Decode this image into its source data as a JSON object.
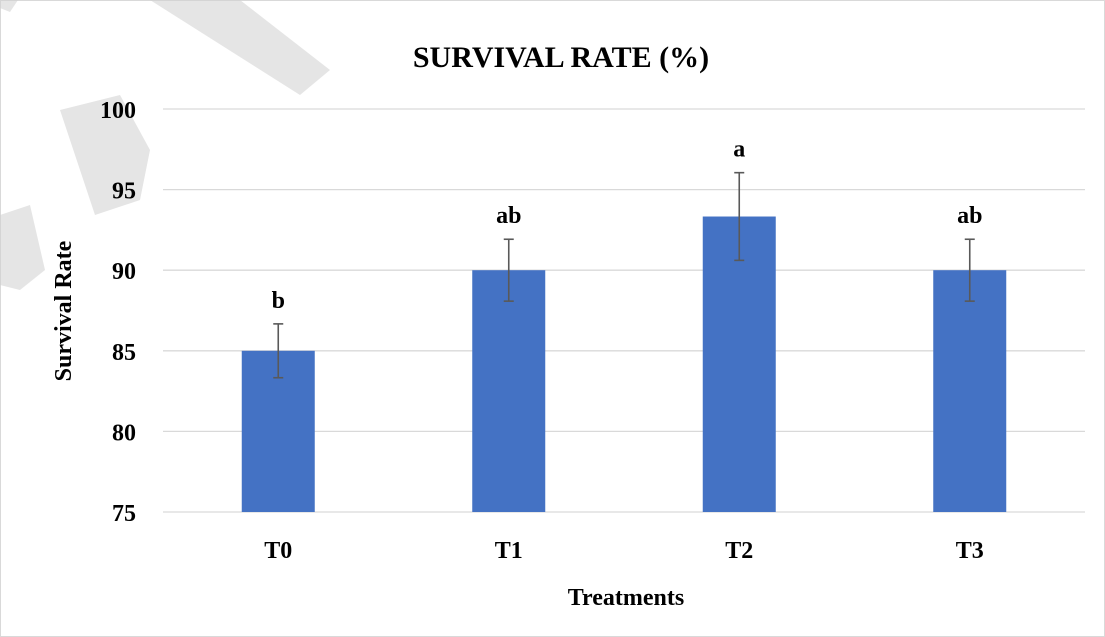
{
  "chart_data": {
    "type": "bar",
    "title": "SURVIVAL RATE (%)",
    "xlabel": "Treatments",
    "ylabel": "Survival Rate",
    "categories": [
      "T0",
      "T1",
      "T2",
      "T3"
    ],
    "values": [
      85,
      90,
      93.33,
      90
    ],
    "errors": [
      1.67,
      1.92,
      2.72,
      1.92
    ],
    "significance_labels": [
      "b",
      "ab",
      "a",
      "ab"
    ],
    "ylim": [
      75,
      100
    ],
    "yticks": [
      75,
      80,
      85,
      90,
      95,
      100
    ],
    "grid": true,
    "bar_color": "#4472C4",
    "error_bar_color": "#595959",
    "gridline_color": "#d9d9d9"
  }
}
